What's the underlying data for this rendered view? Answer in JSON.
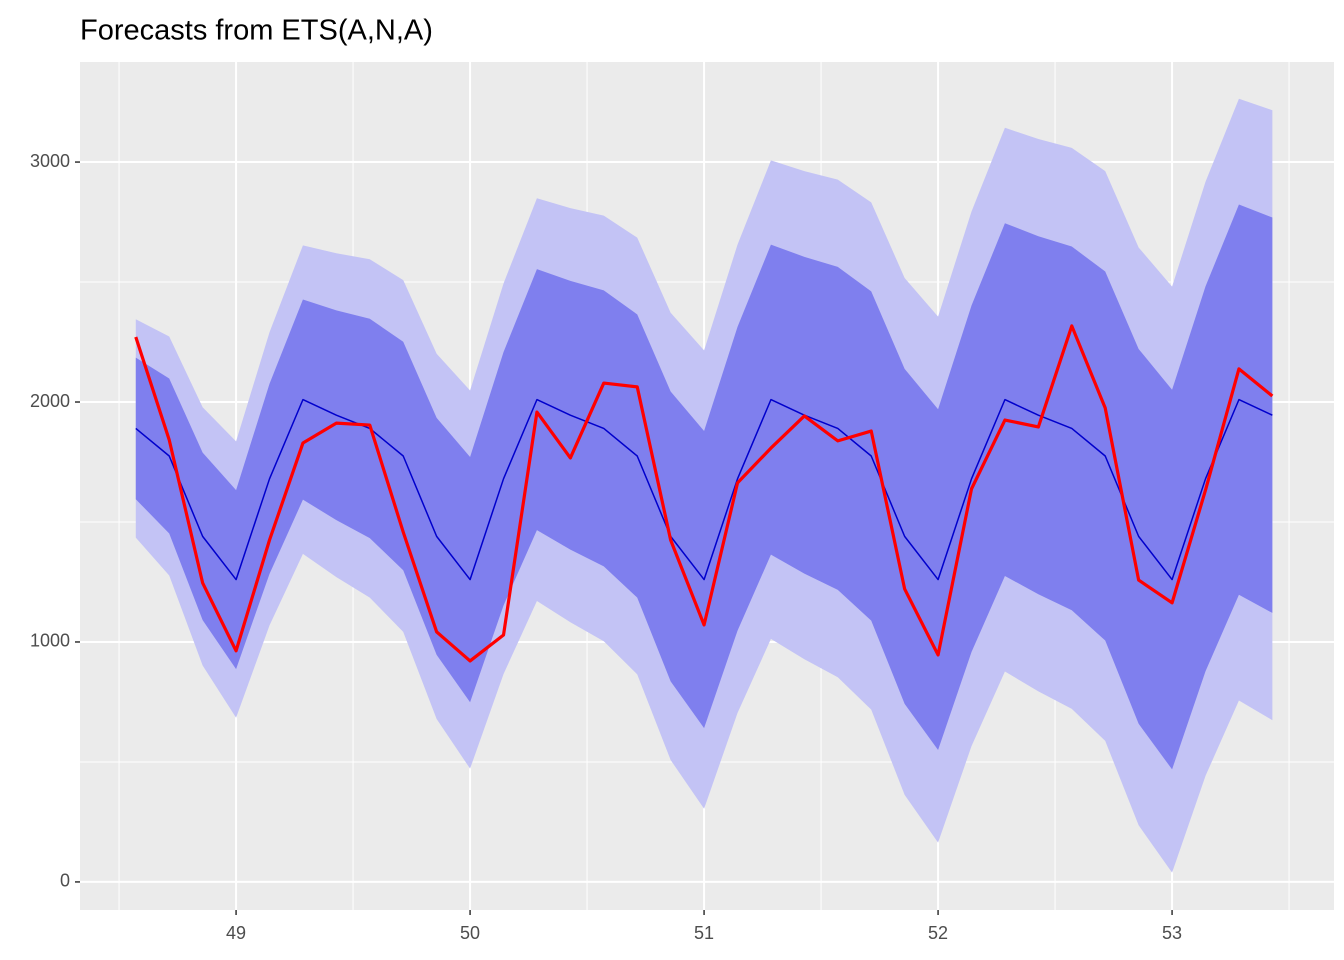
{
  "chart_data": {
    "type": "forecast",
    "title": "Forecasts from ETS(A,N,A)",
    "x": [
      48.5714,
      48.7143,
      48.8571,
      49,
      49.1429,
      49.2857,
      49.4286,
      49.5714,
      49.7143,
      49.8571,
      50,
      50.1429,
      50.2857,
      50.4286,
      50.5714,
      50.7143,
      50.8571,
      51,
      51.1429,
      51.2857,
      51.4286,
      51.5714,
      51.7143,
      51.8571,
      52,
      52.1429,
      52.2857,
      52.4286,
      52.5714,
      52.7143,
      52.8571,
      53,
      53.1429,
      53.2857,
      53.4286
    ],
    "bands": [
      {
        "color": "#c3c3f5",
        "lower": [
          1435,
          1277,
          902,
          684,
          1069,
          1367,
          1270,
          1185,
          1042,
          679,
          472,
          866,
          1171,
          1082,
          1003,
          865,
          508,
          305,
          704,
          1013,
          928,
          853,
          718,
          363,
          164,
          566,
          877,
          794,
          721,
          588,
          236,
          39,
          442,
          756,
          674
        ],
        "upper": [
          2345,
          2273,
          1978,
          1836,
          2291,
          2653,
          2620,
          2595,
          2508,
          2201,
          2048,
          2494,
          2849,
          2808,
          2777,
          2685,
          2372,
          2215,
          2656,
          3007,
          2962,
          2927,
          2832,
          2517,
          2356,
          2794,
          3143,
          3096,
          3059,
          2962,
          2644,
          2481,
          2918,
          3264,
          3216
        ]
      },
      {
        "color": "#7f7fee",
        "lower": [
          1595,
          1452,
          1091,
          887,
          1284,
          1593,
          1508,
          1433,
          1299,
          946,
          749,
          1152,
          1466,
          1385,
          1315,
          1185,
          836,
          641,
          1047,
          1364,
          1285,
          1217,
          1089,
          742,
          550,
          958,
          1275,
          1199,
          1132,
          1006,
          659,
          469,
          878,
          1197,
          1121
        ],
        "upper": [
          2185,
          2098,
          1789,
          1633,
          2076,
          2427,
          2382,
          2347,
          2251,
          1934,
          1771,
          2208,
          2554,
          2505,
          2465,
          2365,
          2044,
          1879,
          2313,
          2656,
          2605,
          2563,
          2461,
          2138,
          1970,
          2402,
          2745,
          2691,
          2648,
          2544,
          2221,
          2051,
          2482,
          2823,
          2769
        ]
      }
    ],
    "series": [
      {
        "color": "#0000cc",
        "width": 1.5,
        "values": [
          1890,
          1775,
          1440,
          1260,
          1680,
          2010,
          1945,
          1890,
          1775,
          1440,
          1260,
          1680,
          2010,
          1945,
          1890,
          1775,
          1440,
          1260,
          1680,
          2010,
          1945,
          1890,
          1775,
          1440,
          1260,
          1680,
          2010,
          1945,
          1890,
          1775,
          1440,
          1260,
          1680,
          2010,
          1945
        ]
      },
      {
        "color": "#ff0000",
        "width": 3.2,
        "values": [
          2271,
          1842,
          1246,
          963,
          1425,
          1829,
          1912,
          1904,
          1458,
          1042,
          921,
          1029,
          1958,
          1767,
          2079,
          2063,
          1425,
          1071,
          1663,
          1808,
          1942,
          1838,
          1879,
          1221,
          946,
          1638,
          1925,
          1896,
          2317,
          1975,
          1258,
          1163,
          1633,
          2138,
          2025
        ]
      }
    ],
    "xlim": [
      48.333,
      53.692
    ],
    "xticks": [
      49,
      50,
      51,
      52,
      53
    ],
    "ylim": [
      -117,
      3417
    ],
    "yticks": [
      0,
      1000,
      2000,
      3000
    ],
    "grid": true
  }
}
